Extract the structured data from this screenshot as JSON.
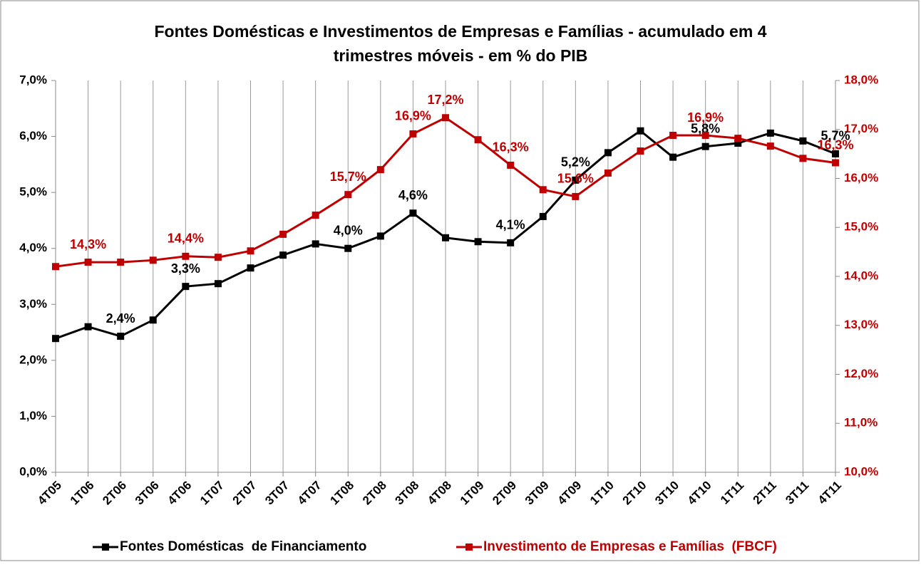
{
  "chart_data": {
    "type": "line",
    "title": "Fontes Domésticas e Investimentos de Empresas e Famílias - acumulado em 4 trimestres móveis - em % do PIB",
    "categories": [
      "4T05",
      "1T06",
      "2T06",
      "3T06",
      "4T06",
      "1T07",
      "2T07",
      "3T07",
      "4T07",
      "1T08",
      "2T08",
      "3T08",
      "4T08",
      "1T09",
      "2T09",
      "3T09",
      "4T09",
      "1T10",
      "2T10",
      "3T10",
      "4T10",
      "1T11",
      "2T11",
      "3T11",
      "4T11"
    ],
    "series": [
      {
        "name": "Fontes Domésticas  de Financiamento",
        "color": "#000000",
        "axis": "y",
        "values": [
          2.39,
          2.6,
          2.43,
          2.72,
          3.32,
          3.37,
          3.65,
          3.88,
          4.08,
          4.0,
          4.22,
          4.63,
          4.19,
          4.12,
          4.1,
          4.57,
          5.22,
          5.71,
          6.1,
          5.63,
          5.82,
          5.88,
          6.06,
          5.92,
          5.69
        ],
        "value_labels": [
          null,
          null,
          "2,4%",
          null,
          "3,3%",
          null,
          null,
          null,
          null,
          "4,0%",
          null,
          "4,6%",
          null,
          null,
          "4,1%",
          null,
          "5,2%",
          null,
          null,
          null,
          "5,8%",
          null,
          null,
          null,
          "5,7%"
        ]
      },
      {
        "name": "Investimento de Empresas e Famílias  (FBCF)",
        "color": "#c00000",
        "axis": "y2",
        "values": [
          14.2,
          14.29,
          14.29,
          14.33,
          14.41,
          14.39,
          14.52,
          14.86,
          15.25,
          15.67,
          16.18,
          16.91,
          17.24,
          16.79,
          16.27,
          15.77,
          15.63,
          16.11,
          16.56,
          16.88,
          16.88,
          16.82,
          16.66,
          16.41,
          16.32
        ],
        "value_labels": [
          null,
          "14,3%",
          null,
          null,
          "14,4%",
          null,
          null,
          null,
          null,
          "15,7%",
          null,
          "16,9%",
          "17,2%",
          null,
          "16,3%",
          null,
          "15,6%",
          null,
          null,
          null,
          "16,9%",
          null,
          null,
          null,
          "16,3%"
        ]
      }
    ],
    "ylim": [
      0,
      7
    ],
    "yticks": [
      {
        "value": 0,
        "label": "0,0%"
      },
      {
        "value": 1,
        "label": "1,0%"
      },
      {
        "value": 2,
        "label": "2,0%"
      },
      {
        "value": 3,
        "label": "3,0%"
      },
      {
        "value": 4,
        "label": "4,0%"
      },
      {
        "value": 5,
        "label": "5,0%"
      },
      {
        "value": 6,
        "label": "6,0%"
      },
      {
        "value": 7,
        "label": "7,0%"
      }
    ],
    "y2lim": [
      10,
      18
    ],
    "y2ticks": [
      {
        "value": 10,
        "label": "10,0%"
      },
      {
        "value": 11,
        "label": "11,0%"
      },
      {
        "value": 12,
        "label": "12,0%"
      },
      {
        "value": 13,
        "label": "13,0%"
      },
      {
        "value": 14,
        "label": "14,0%"
      },
      {
        "value": 15,
        "label": "15,0%"
      },
      {
        "value": 16,
        "label": "16,0%"
      },
      {
        "value": 17,
        "label": "17,0%"
      },
      {
        "value": 18,
        "label": "18,0%"
      }
    ],
    "grid": true,
    "legend": "bottom"
  }
}
